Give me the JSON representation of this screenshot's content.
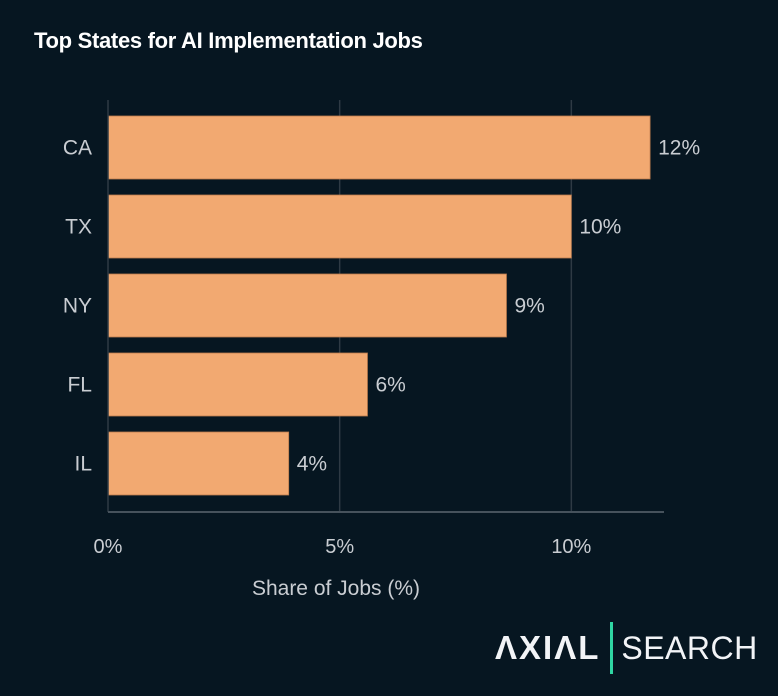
{
  "chart_data": {
    "type": "bar",
    "orientation": "horizontal",
    "title": "Top States for AI Implementation Jobs",
    "xlabel": "Share of Jobs (%)",
    "ylabel": "",
    "categories": [
      "CA",
      "TX",
      "NY",
      "FL",
      "IL"
    ],
    "values": [
      11.7,
      10.0,
      8.6,
      5.6,
      3.9
    ],
    "data_labels": [
      "12%",
      "10%",
      "9%",
      "6%",
      "4%"
    ],
    "xlim": [
      0,
      12
    ],
    "xticks": [
      0,
      5,
      10
    ],
    "xtick_labels": [
      "0%",
      "5%",
      "10%"
    ],
    "grid": "vertical",
    "colors": {
      "bar": "#F2A971",
      "background": "#061621",
      "text": "#C9CDD2",
      "grid": "#2E3A44"
    }
  },
  "brand": {
    "logo_left": "ΛXIΛL",
    "logo_right": "SEARCH",
    "accent": "#2FD6A3"
  }
}
